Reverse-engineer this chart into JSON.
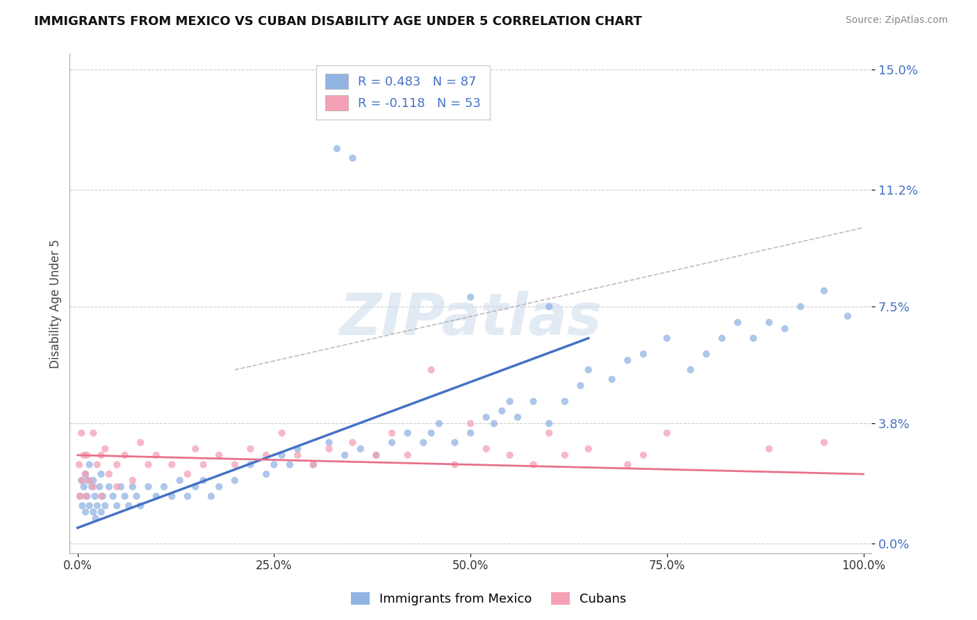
{
  "title": "IMMIGRANTS FROM MEXICO VS CUBAN DISABILITY AGE UNDER 5 CORRELATION CHART",
  "source": "Source: ZipAtlas.com",
  "ylabel": "Disability Age Under 5",
  "legend_mexico": "Immigrants from Mexico",
  "legend_cubans": "Cubans",
  "r_mexico": 0.483,
  "n_mexico": 87,
  "r_cubans": -0.118,
  "n_cubans": 53,
  "color_mexico": "#92B4E3",
  "color_cubans": "#F4A0B5",
  "color_mexico_line": "#4472C4",
  "color_cubans_line": "#E8708A",
  "color_legend_r": "#4472C4",
  "color_legend_n": "#E05070",
  "ytick_values": [
    0.0,
    3.8,
    7.5,
    11.2,
    15.0
  ],
  "xtick_values": [
    0.0,
    25.0,
    50.0,
    75.0,
    100.0
  ],
  "xlim": [
    -1.0,
    101.0
  ],
  "ylim": [
    -0.3,
    15.5
  ],
  "background_color": "#ffffff",
  "grid_color": "#cccccc",
  "watermark": "ZIPatlas",
  "mexico_x": [
    0.3,
    0.5,
    0.6,
    0.8,
    1.0,
    1.0,
    1.2,
    1.3,
    1.5,
    1.5,
    1.8,
    2.0,
    2.0,
    2.2,
    2.3,
    2.5,
    2.8,
    3.0,
    3.0,
    3.2,
    3.5,
    4.0,
    4.5,
    5.0,
    5.5,
    6.0,
    6.5,
    7.0,
    7.5,
    8.0,
    9.0,
    10.0,
    11.0,
    12.0,
    13.0,
    14.0,
    15.0,
    16.0,
    17.0,
    18.0,
    20.0,
    22.0,
    24.0,
    25.0,
    26.0,
    27.0,
    28.0,
    30.0,
    32.0,
    33.0,
    34.0,
    35.0,
    36.0,
    38.0,
    40.0,
    42.0,
    44.0,
    45.0,
    46.0,
    48.0,
    50.0,
    50.0,
    52.0,
    53.0,
    54.0,
    55.0,
    56.0,
    58.0,
    60.0,
    60.0,
    62.0,
    64.0,
    65.0,
    68.0,
    70.0,
    72.0,
    75.0,
    78.0,
    80.0,
    82.0,
    84.0,
    86.0,
    88.0,
    90.0,
    92.0,
    95.0,
    98.0
  ],
  "mexico_y": [
    1.5,
    2.0,
    1.2,
    1.8,
    2.2,
    1.0,
    1.5,
    2.0,
    1.2,
    2.5,
    1.8,
    1.0,
    2.0,
    1.5,
    0.8,
    1.2,
    1.8,
    1.0,
    2.2,
    1.5,
    1.2,
    1.8,
    1.5,
    1.2,
    1.8,
    1.5,
    1.2,
    1.8,
    1.5,
    1.2,
    1.8,
    1.5,
    1.8,
    1.5,
    2.0,
    1.5,
    1.8,
    2.0,
    1.5,
    1.8,
    2.0,
    2.5,
    2.2,
    2.5,
    2.8,
    2.5,
    3.0,
    2.5,
    3.2,
    12.5,
    2.8,
    12.2,
    3.0,
    2.8,
    3.2,
    3.5,
    3.2,
    3.5,
    3.8,
    3.2,
    3.5,
    7.8,
    4.0,
    3.8,
    4.2,
    4.5,
    4.0,
    4.5,
    3.8,
    7.5,
    4.5,
    5.0,
    5.5,
    5.2,
    5.8,
    6.0,
    6.5,
    5.5,
    6.0,
    6.5,
    7.0,
    6.5,
    7.0,
    6.8,
    7.5,
    8.0,
    7.2
  ],
  "cubans_x": [
    0.2,
    0.3,
    0.5,
    0.5,
    0.8,
    1.0,
    1.0,
    1.2,
    1.5,
    2.0,
    2.0,
    2.5,
    3.0,
    3.0,
    3.5,
    4.0,
    5.0,
    5.0,
    6.0,
    7.0,
    8.0,
    9.0,
    10.0,
    12.0,
    14.0,
    15.0,
    16.0,
    18.0,
    20.0,
    22.0,
    24.0,
    26.0,
    28.0,
    30.0,
    32.0,
    35.0,
    38.0,
    40.0,
    42.0,
    45.0,
    48.0,
    50.0,
    52.0,
    55.0,
    58.0,
    60.0,
    62.0,
    65.0,
    70.0,
    72.0,
    75.0,
    88.0,
    95.0
  ],
  "cubans_y": [
    2.5,
    1.5,
    3.5,
    2.0,
    2.8,
    2.2,
    1.5,
    2.8,
    2.0,
    3.5,
    1.8,
    2.5,
    2.8,
    1.5,
    3.0,
    2.2,
    1.8,
    2.5,
    2.8,
    2.0,
    3.2,
    2.5,
    2.8,
    2.5,
    2.2,
    3.0,
    2.5,
    2.8,
    2.5,
    3.0,
    2.8,
    3.5,
    2.8,
    2.5,
    3.0,
    3.2,
    2.8,
    3.5,
    2.8,
    5.5,
    2.5,
    3.8,
    3.0,
    2.8,
    2.5,
    3.5,
    2.8,
    3.0,
    2.5,
    2.8,
    3.5,
    3.0,
    3.2
  ],
  "mexico_trendline": [
    0.5,
    6.5
  ],
  "mexico_trendline_x": [
    0.0,
    65.0
  ],
  "cubans_trendline": [
    2.8,
    2.2
  ],
  "cubans_trendline_x": [
    0.0,
    100.0
  ],
  "dashed_line": [
    5.5,
    10.0
  ],
  "dashed_line_x": [
    20.0,
    100.0
  ]
}
